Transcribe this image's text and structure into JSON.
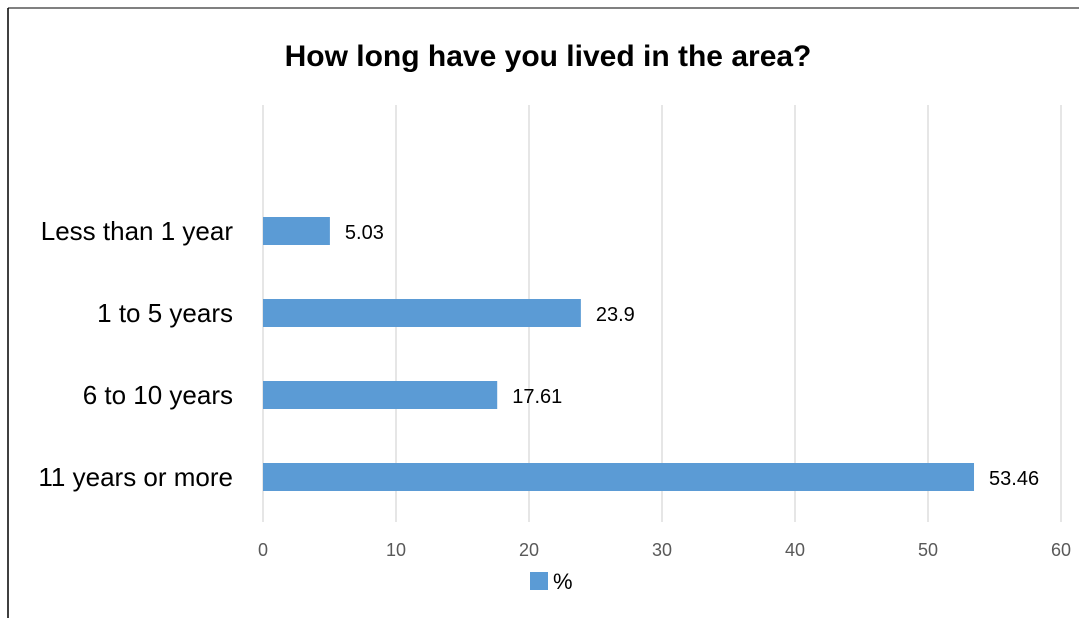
{
  "chart_data": {
    "type": "bar",
    "orientation": "horizontal",
    "title": "How long have you lived in the area?",
    "categories": [
      "Less than 1 year",
      "1 to 5 years",
      "6 to 10 years",
      "11 years or more"
    ],
    "series": [
      {
        "name": "%",
        "values": [
          5.03,
          23.9,
          17.61,
          53.46
        ],
        "color": "#5B9BD5"
      }
    ],
    "xlim": [
      0,
      60
    ],
    "xticks": [
      0,
      10,
      20,
      30,
      40,
      50,
      60
    ],
    "grid": true,
    "legend_position": "bottom",
    "gridline_color": "#D9D9D9"
  }
}
